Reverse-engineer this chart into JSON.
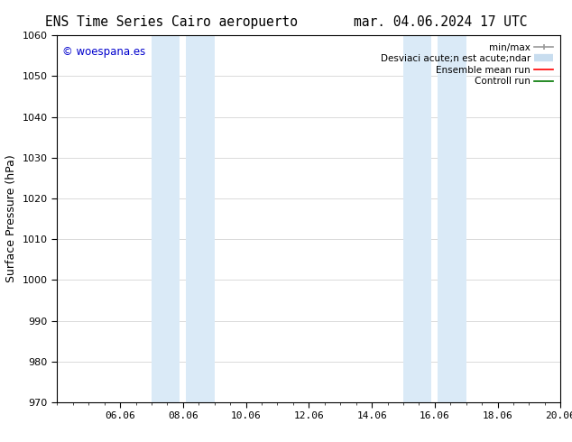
{
  "title_left": "ENS Time Series Cairo aeropuerto",
  "title_right": "mar. 04.06.2024 17 UTC",
  "ylabel": "Surface Pressure (hPa)",
  "ylim": [
    970,
    1060
  ],
  "yticks": [
    970,
    980,
    990,
    1000,
    1010,
    1020,
    1030,
    1040,
    1050,
    1060
  ],
  "xlim": [
    0,
    16
  ],
  "xtick_labels": [
    "06.06",
    "08.06",
    "10.06",
    "12.06",
    "14.06",
    "16.06",
    "18.06",
    "20.06"
  ],
  "xtick_positions": [
    2,
    4,
    6,
    8,
    10,
    12,
    14,
    16
  ],
  "shaded_bands": [
    {
      "x_start": 3.0,
      "x_end": 3.9,
      "color": "#daeaf7"
    },
    {
      "x_start": 4.1,
      "x_end": 5.0,
      "color": "#daeaf7"
    },
    {
      "x_start": 11.0,
      "x_end": 11.9,
      "color": "#daeaf7"
    },
    {
      "x_start": 12.1,
      "x_end": 13.0,
      "color": "#daeaf7"
    }
  ],
  "watermark_text": "© woespana.es",
  "watermark_color": "#0000cc",
  "background_color": "#ffffff",
  "grid_color": "#cccccc",
  "title_fontsize": 10.5,
  "tick_fontsize": 8,
  "ylabel_fontsize": 9,
  "watermark_fontsize": 8.5,
  "legend_fontsize": 7.5
}
